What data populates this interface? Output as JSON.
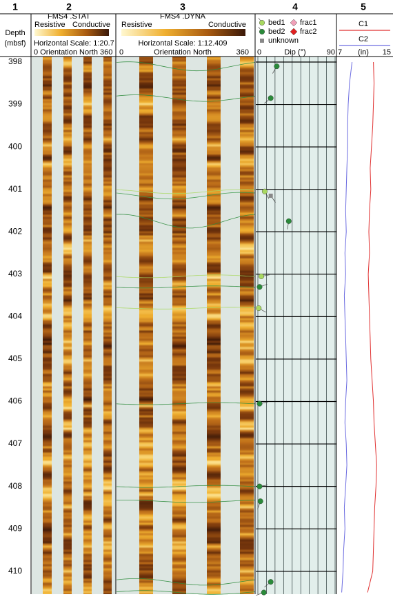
{
  "columns": [
    "1",
    "2",
    "3",
    "4",
    "5"
  ],
  "depth_track": {
    "title": "Depth",
    "unit": "(mbsf)",
    "ylim": [
      397.87,
      410.54
    ],
    "ticks": [
      398,
      399,
      400,
      401,
      402,
      403,
      404,
      405,
      406,
      407,
      408,
      409,
      410
    ]
  },
  "stat_image": {
    "title": "FMS4 .STAT",
    "left": "Resistive",
    "right": "Conductive",
    "scale": "Horizontal Scale: 1:20.7",
    "orientation": "0 Orientation North 360"
  },
  "dyna_image": {
    "title": "FMS4 .DYNA",
    "left": "Resistive",
    "right": "Conductive",
    "scale": "Horizontal Scale:  1:12.409",
    "orientation_min": 0,
    "orientation_label": "Orientation North",
    "orientation_max": 360
  },
  "dip_panel": {
    "xlabel": "Dip (°)",
    "xlim": [
      0,
      90
    ],
    "xticks": [
      0,
      90
    ],
    "legend": [
      {
        "name": "bed1",
        "color": "#a8d860"
      },
      {
        "name": "bed2",
        "color": "#2a8a3a"
      },
      {
        "name": "unknown",
        "color": "#888888"
      },
      {
        "name": "frac1",
        "color": "#f0a0b8"
      },
      {
        "name": "frac2",
        "color": "#e02020"
      }
    ],
    "picks": [
      {
        "type": "bed2",
        "depth": 398.1,
        "dip": 22,
        "azimuth": 210
      },
      {
        "type": "bed2",
        "depth": 398.85,
        "dip": 15,
        "azimuth": 230
      },
      {
        "type": "bed1",
        "depth": 401.05,
        "dip": 8,
        "azimuth": 150
      },
      {
        "type": "unknown",
        "depth": 401.15,
        "dip": 15,
        "azimuth": 145
      },
      {
        "type": "bed2",
        "depth": 401.75,
        "dip": 36,
        "azimuth": 190
      },
      {
        "type": "bed1",
        "depth": 403.05,
        "dip": 4,
        "azimuth": 80
      },
      {
        "type": "bed2",
        "depth": 403.3,
        "dip": 2,
        "azimuth": 70
      },
      {
        "type": "bed1",
        "depth": 403.8,
        "dip": 1,
        "azimuth": 120
      },
      {
        "type": "bed2",
        "depth": 406.05,
        "dip": 2,
        "azimuth": 80
      },
      {
        "type": "bed2",
        "depth": 408.0,
        "dip": 2,
        "azimuth": 80
      },
      {
        "type": "bed2",
        "depth": 408.35,
        "dip": 3,
        "azimuth": 200
      },
      {
        "type": "bed2",
        "depth": 410.25,
        "dip": 15,
        "azimuth": 230
      },
      {
        "type": "bed2",
        "depth": 410.5,
        "dip": 7,
        "azimuth": 250
      }
    ]
  },
  "caliper": {
    "unit": "(in)",
    "xlim": [
      7,
      15
    ],
    "xticks": [
      7,
      15
    ],
    "depths": [
      398,
      398.5,
      399,
      399.5,
      400,
      400.5,
      401,
      401.5,
      402,
      402.5,
      403,
      403.5,
      404,
      404.5,
      405,
      405.5,
      406,
      406.5,
      407,
      407.5,
      408,
      408.5,
      409,
      409.5,
      410,
      410.5
    ],
    "series": [
      {
        "name": "C1",
        "color": "#e03030",
        "values": [
          12.5,
          12.6,
          12.5,
          12.4,
          12.2,
          12.0,
          12.1,
          11.9,
          11.8,
          11.9,
          11.7,
          11.8,
          11.9,
          12.0,
          12.1,
          12.3,
          12.5,
          12.6,
          12.8,
          13.0,
          12.9,
          12.7,
          12.6,
          12.5,
          12.4,
          11.6
        ]
      },
      {
        "name": "C2",
        "color": "#6a6ae0",
        "values": [
          9.2,
          8.8,
          8.6,
          8.5,
          8.5,
          8.4,
          8.3,
          8.2,
          8.3,
          8.1,
          8.2,
          8.0,
          8.1,
          8.2,
          8.3,
          8.4,
          8.2,
          8.1,
          8.3,
          8.4,
          8.2,
          8.0,
          8.1,
          7.9,
          7.8,
          7.6
        ]
      }
    ]
  }
}
